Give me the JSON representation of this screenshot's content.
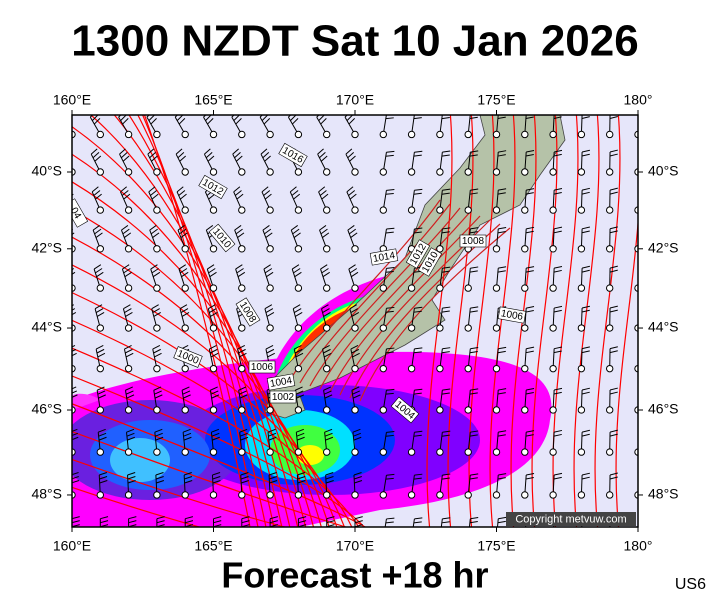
{
  "title": "1300 NZDT Sat 10 Jan 2026",
  "footer": "Forecast +18 hr",
  "product_code": "US6",
  "copyright": "Copyright metvuw.com",
  "map": {
    "lon_ticks": [
      {
        "value": 160,
        "label": "160°E"
      },
      {
        "value": 165,
        "label": "165°E"
      },
      {
        "value": 170,
        "label": "170°E"
      },
      {
        "value": 175,
        "label": "175°E"
      },
      {
        "value": 180,
        "label": "180°"
      }
    ],
    "lat_ticks": [
      {
        "value": -40,
        "label": "40°S"
      },
      {
        "value": -42,
        "label": "42°S"
      },
      {
        "value": -44,
        "label": "44°S"
      },
      {
        "value": -46,
        "label": "46°S"
      },
      {
        "value": -48,
        "label": "48°S"
      }
    ],
    "isobar_labels": [
      "1016",
      "1012",
      "1010",
      "1008",
      "1006",
      "1004",
      "1002",
      "1000",
      "1004",
      "1014",
      "1012",
      "1010",
      "1008",
      "1006",
      "04"
    ]
  }
}
